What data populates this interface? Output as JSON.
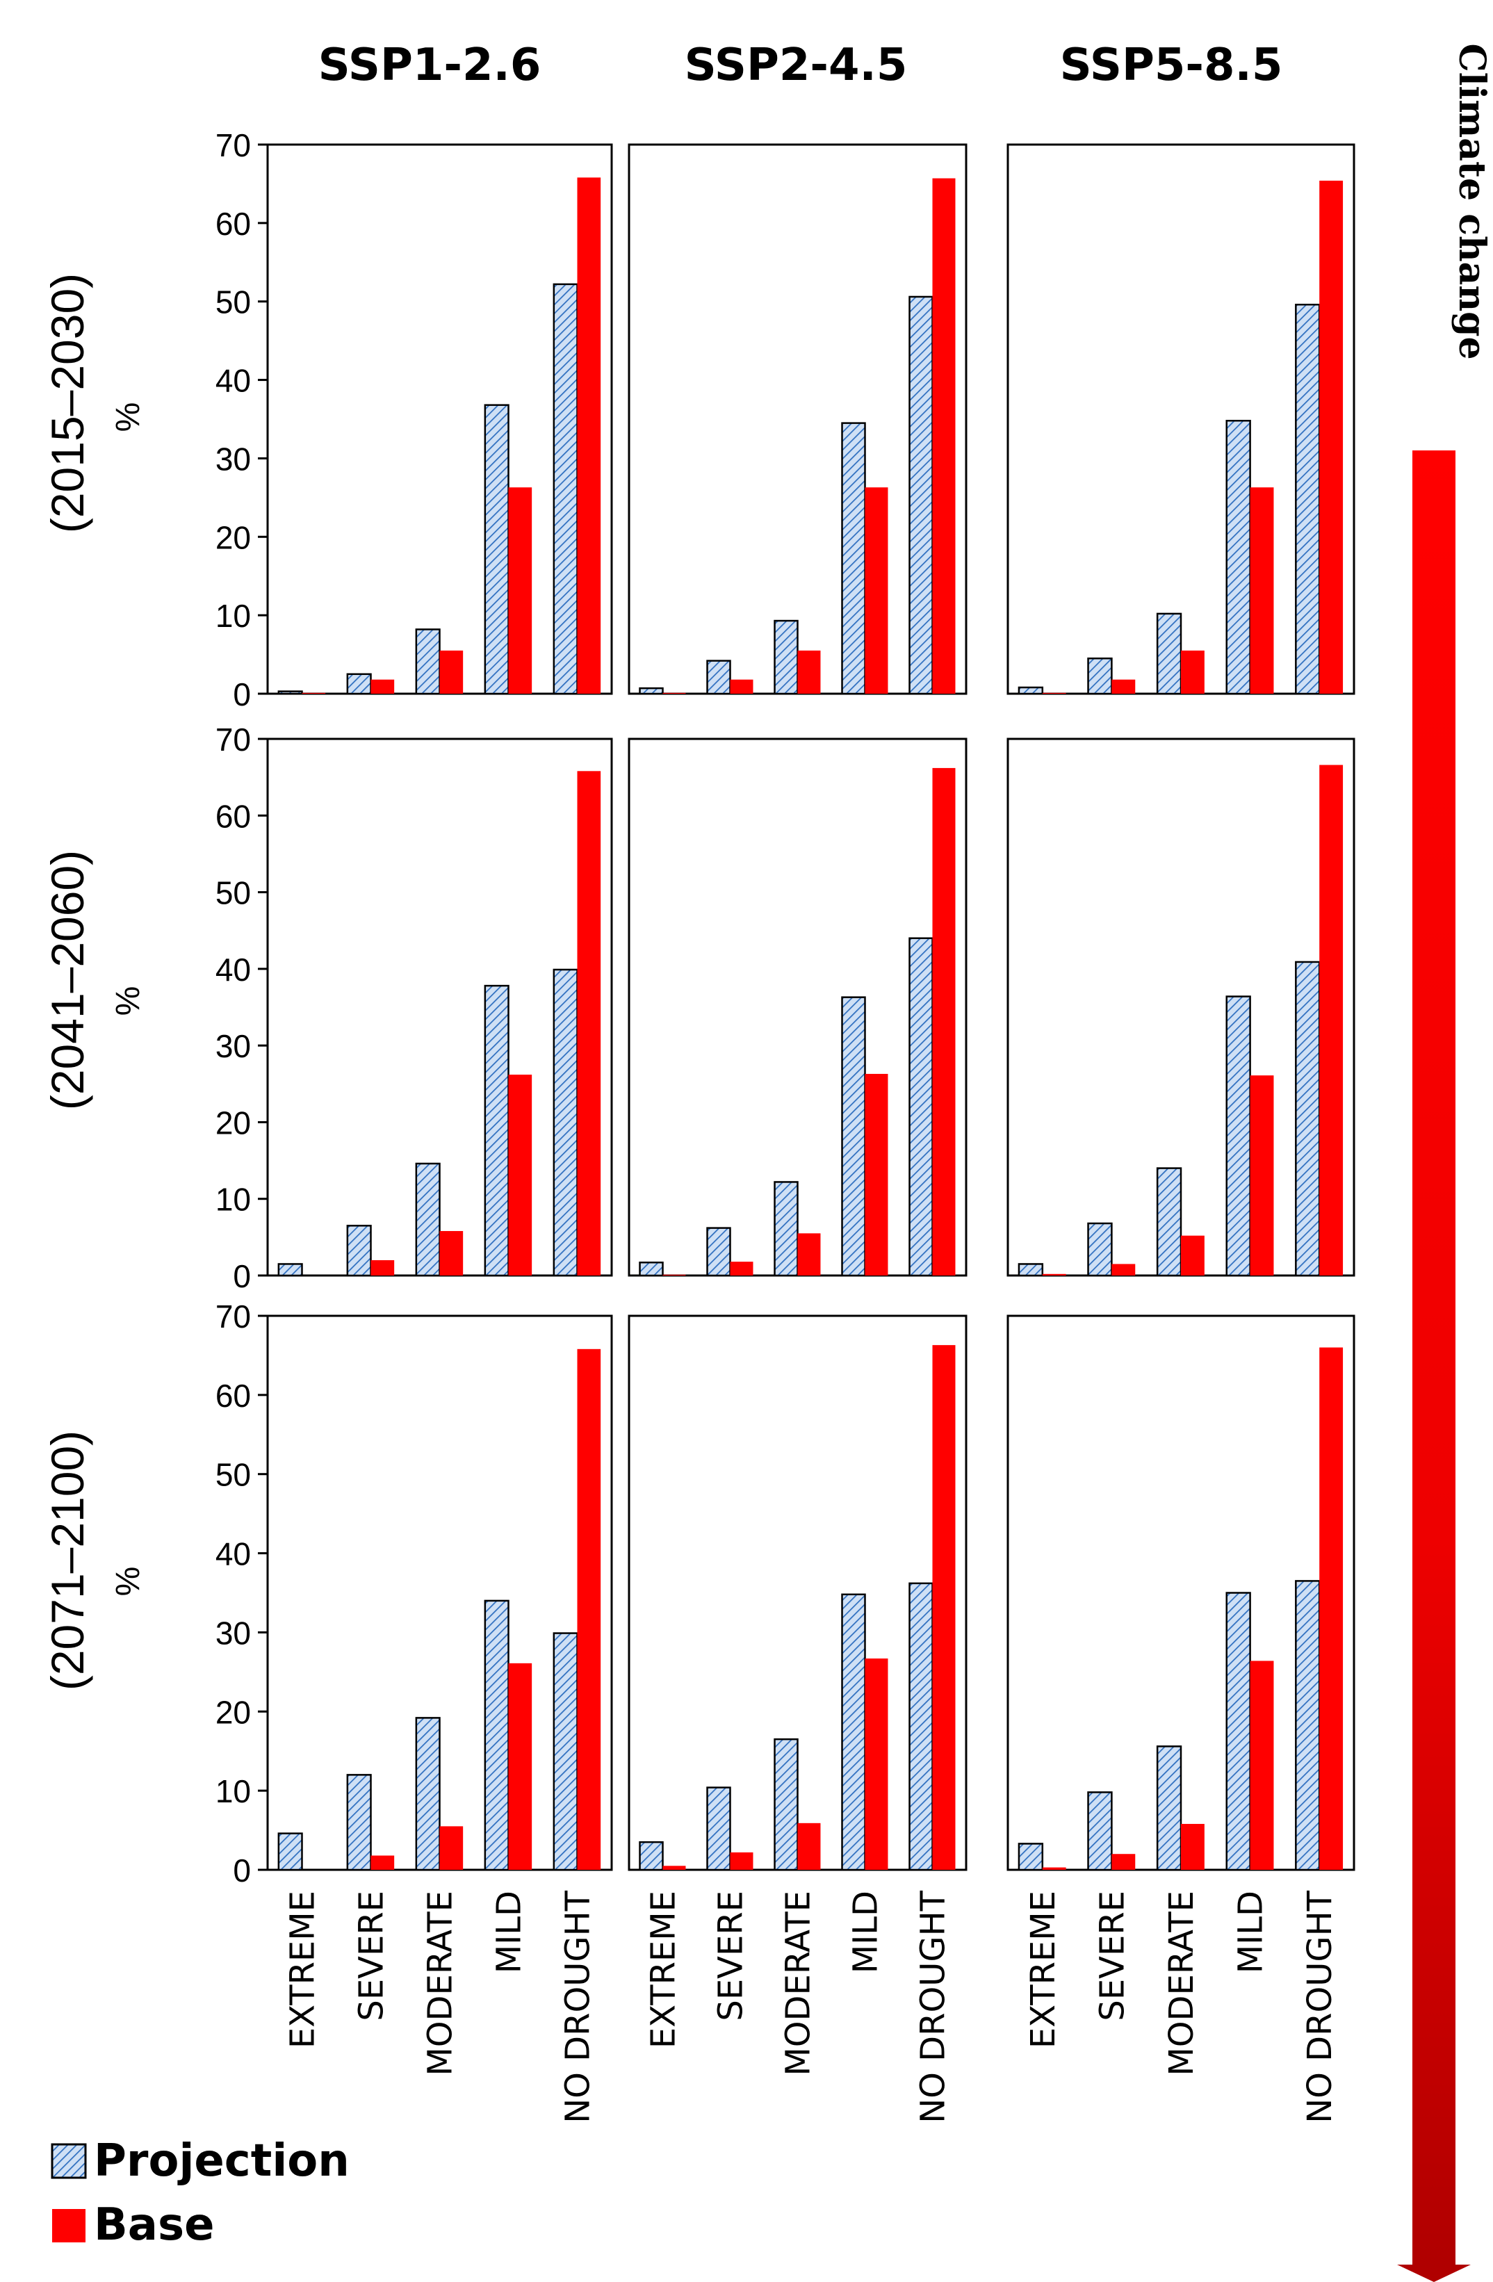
{
  "figure": {
    "scenarios": [
      "SSP1-2.6",
      "SSP2-4.5",
      "SSP5-8.5"
    ],
    "periods": [
      "(2015–2030)",
      "(2041–2060)",
      "(2071–2100)"
    ],
    "y_unit": "%",
    "side_label": "Climate change",
    "legend": [
      "Projection",
      "Base"
    ],
    "colors": {
      "projection_fill": "#cfe0f5",
      "projection_hatch": "#2f6fc0",
      "base": "#ff0000",
      "arrow_top": "#ff0000",
      "arrow_bottom": "#b00000"
    }
  },
  "chart_data": {
    "type": "bar",
    "categories": [
      "EXTREME",
      "SEVERE",
      "MODERATE",
      "MILD",
      "NO DROUGHT"
    ],
    "ylim": [
      0,
      70
    ],
    "yticks": [
      0,
      10,
      20,
      30,
      40,
      50,
      60,
      70
    ],
    "ylabel": "%",
    "panels": [
      {
        "period": "(2015–2030)",
        "scenario": "SSP1-2.6",
        "series": [
          {
            "name": "Projection",
            "values": [
              0.3,
              2.5,
              8.2,
              36.8,
              52.2
            ]
          },
          {
            "name": "Base",
            "values": [
              0.1,
              1.8,
              5.5,
              26.3,
              65.8
            ]
          }
        ]
      },
      {
        "period": "(2015–2030)",
        "scenario": "SSP2-4.5",
        "series": [
          {
            "name": "Projection",
            "values": [
              0.7,
              4.2,
              9.3,
              34.5,
              50.6
            ]
          },
          {
            "name": "Base",
            "values": [
              0.1,
              1.8,
              5.5,
              26.3,
              65.7
            ]
          }
        ]
      },
      {
        "period": "(2015–2030)",
        "scenario": "SSP5-8.5",
        "series": [
          {
            "name": "Projection",
            "values": [
              0.8,
              4.5,
              10.2,
              34.8,
              49.6
            ]
          },
          {
            "name": "Base",
            "values": [
              0.1,
              1.8,
              5.5,
              26.3,
              65.4
            ]
          }
        ]
      },
      {
        "period": "(2041–2060)",
        "scenario": "SSP1-2.6",
        "series": [
          {
            "name": "Projection",
            "values": [
              1.5,
              6.5,
              14.6,
              37.8,
              39.9
            ]
          },
          {
            "name": "Base",
            "values": [
              0.0,
              2.0,
              5.8,
              26.2,
              65.8
            ]
          }
        ]
      },
      {
        "period": "(2041–2060)",
        "scenario": "SSP2-4.5",
        "series": [
          {
            "name": "Projection",
            "values": [
              1.7,
              6.2,
              12.2,
              36.3,
              44.0
            ]
          },
          {
            "name": "Base",
            "values": [
              0.1,
              1.8,
              5.5,
              26.3,
              66.2
            ]
          }
        ]
      },
      {
        "period": "(2041–2060)",
        "scenario": "SSP5-8.5",
        "series": [
          {
            "name": "Projection",
            "values": [
              1.5,
              6.8,
              14.0,
              36.4,
              40.9
            ]
          },
          {
            "name": "Base",
            "values": [
              0.2,
              1.5,
              5.2,
              26.1,
              66.6
            ]
          }
        ]
      },
      {
        "period": "(2071–2100)",
        "scenario": "SSP1-2.6",
        "series": [
          {
            "name": "Projection",
            "values": [
              4.6,
              12.0,
              19.2,
              34.0,
              29.9
            ]
          },
          {
            "name": "Base",
            "values": [
              0.0,
              1.8,
              5.5,
              26.1,
              65.8
            ]
          }
        ]
      },
      {
        "period": "(2071–2100)",
        "scenario": "SSP2-4.5",
        "series": [
          {
            "name": "Projection",
            "values": [
              3.5,
              10.4,
              16.5,
              34.8,
              36.2
            ]
          },
          {
            "name": "Base",
            "values": [
              0.5,
              2.2,
              5.9,
              26.7,
              66.3
            ]
          }
        ]
      },
      {
        "period": "(2071–2100)",
        "scenario": "SSP5-8.5",
        "series": [
          {
            "name": "Projection",
            "values": [
              3.3,
              9.8,
              15.6,
              35.0,
              36.5
            ]
          },
          {
            "name": "Base",
            "values": [
              0.3,
              2.0,
              5.8,
              26.4,
              66.0
            ]
          }
        ]
      }
    ]
  }
}
